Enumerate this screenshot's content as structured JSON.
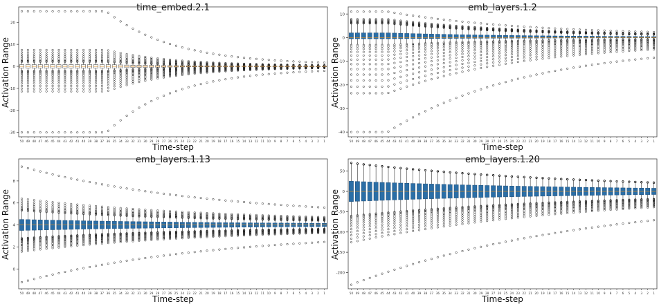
{
  "chart_data": [
    {
      "type": "box",
      "title": "time_embed.2.1",
      "xlabel": "Time-step",
      "ylabel": "Activation Range",
      "ylim": [
        -32,
        27
      ],
      "yticks": [
        -30,
        -20,
        -10,
        0,
        10,
        20
      ],
      "ytick_labels": [
        "-30",
        "-20",
        "-10",
        "0",
        "10",
        "20"
      ],
      "categories": [
        "50",
        "49",
        "48",
        "47",
        "46",
        "45",
        "44",
        "43",
        "42",
        "41",
        "40",
        "39",
        "38",
        "37",
        "36",
        "35",
        "34",
        "33",
        "32",
        "31",
        "30",
        "29",
        "28",
        "27",
        "26",
        "25",
        "24",
        "23",
        "22",
        "21",
        "20",
        "19",
        "18",
        "17",
        "16",
        "15",
        "14",
        "13",
        "12",
        "11",
        "10",
        "9",
        "8",
        "7",
        "6",
        "5",
        "4",
        "3",
        "2",
        "1"
      ],
      "box_fill": "#ffffff",
      "box_stroke": "#333333",
      "shape": {
        "q1": -0.8,
        "q3": 0.8,
        "whisker_low": -2,
        "whisker_high": 2,
        "cluster_low": -12,
        "cluster_high": 8,
        "extreme_low": -30,
        "extreme_high": 25,
        "decay_start": 0.28,
        "decay_rate": 4.5,
        "floor": 0.03
      }
    },
    {
      "type": "box",
      "title": "emb_layers.1.2",
      "xlabel": "Time-step",
      "ylabel": "Activation Range",
      "ylim": [
        -42,
        13
      ],
      "yticks": [
        -40,
        -30,
        -20,
        -10,
        0,
        10
      ],
      "ytick_labels": [
        "-40",
        "-30",
        "-20",
        "-10",
        "0",
        "10"
      ],
      "categories": [
        "50",
        "49",
        "48",
        "47",
        "46",
        "45",
        "44",
        "43",
        "42",
        "41",
        "40",
        "39",
        "38",
        "37",
        "36",
        "35",
        "34",
        "33",
        "32",
        "31",
        "30",
        "29",
        "28",
        "27",
        "26",
        "25",
        "24",
        "23",
        "22",
        "21",
        "20",
        "19",
        "18",
        "17",
        "16",
        "15",
        "14",
        "13",
        "12",
        "11",
        "10",
        "9",
        "8",
        "7",
        "6",
        "5",
        "4",
        "3",
        "2",
        "1"
      ],
      "box_fill": "#2b6ea6",
      "box_stroke": "#1f4f7a",
      "shape": {
        "q1": -0.5,
        "q3": 2.0,
        "whisker_low": -3,
        "whisker_high": 6,
        "cluster_low": -25,
        "cluster_high": 8,
        "extreme_low": -40,
        "extreme_high": 11,
        "decay_start": 0.12,
        "decay_rate": 2.2,
        "floor": 0.08
      }
    },
    {
      "type": "box",
      "title": "emb_layers.1.13",
      "xlabel": "Time-step",
      "ylabel": "Activation Range",
      "ylim": [
        -1.8,
        10
      ],
      "yticks": [
        0,
        2,
        4,
        6,
        8
      ],
      "ytick_labels": [
        "0",
        "2",
        "4",
        "6",
        "8"
      ],
      "categories": [
        "50",
        "49",
        "48",
        "47",
        "46",
        "45",
        "44",
        "43",
        "42",
        "41",
        "40",
        "39",
        "38",
        "37",
        "36",
        "35",
        "34",
        "33",
        "32",
        "31",
        "30",
        "29",
        "28",
        "27",
        "26",
        "25",
        "24",
        "23",
        "22",
        "21",
        "20",
        "19",
        "18",
        "17",
        "16",
        "15",
        "14",
        "13",
        "12",
        "11",
        "10",
        "9",
        "8",
        "7",
        "6",
        "5",
        "4",
        "3",
        "2",
        "1"
      ],
      "box_fill": "#2b6ea6",
      "box_stroke": "#1f4f7a",
      "shape": {
        "center": 4.0,
        "q1": -0.5,
        "q3": 0.5,
        "whisker_low": -1.2,
        "whisker_high": 1.3,
        "cluster_low": -2.5,
        "cluster_high": 2.5,
        "extreme_low": -5.2,
        "extreme_high": 5.3,
        "decay_start": 0.0,
        "decay_rate": 1.6,
        "floor": 0.12
      }
    },
    {
      "type": "box",
      "title": "emb_layers.1.20",
      "xlabel": "Time-step",
      "ylabel": "Activation Range",
      "ylim": [
        -240,
        80
      ],
      "yticks": [
        -200,
        -150,
        -100,
        -50,
        0,
        50
      ],
      "ytick_labels": [
        "-200",
        "-150",
        "-100",
        "-50",
        "0",
        "50"
      ],
      "categories": [
        "50",
        "49",
        "48",
        "47",
        "46",
        "45",
        "44",
        "43",
        "42",
        "41",
        "40",
        "39",
        "38",
        "37",
        "36",
        "35",
        "34",
        "33",
        "32",
        "31",
        "30",
        "29",
        "28",
        "27",
        "26",
        "25",
        "24",
        "23",
        "22",
        "21",
        "20",
        "19",
        "18",
        "17",
        "16",
        "15",
        "14",
        "13",
        "12",
        "11",
        "10",
        "9",
        "8",
        "7",
        "6",
        "5",
        "4",
        "3",
        "2",
        "1"
      ],
      "box_fill": "#2b6ea6",
      "box_stroke": "#1f4f7a",
      "shape": {
        "q1": -25,
        "q3": 25,
        "whisker_low": -60,
        "whisker_high": 70,
        "cluster_low": -130,
        "cluster_high": 70,
        "extreme_low": -230,
        "extreme_high": 70,
        "decay_start": 0.0,
        "decay_rate": 1.3,
        "floor": 0.05
      }
    }
  ]
}
